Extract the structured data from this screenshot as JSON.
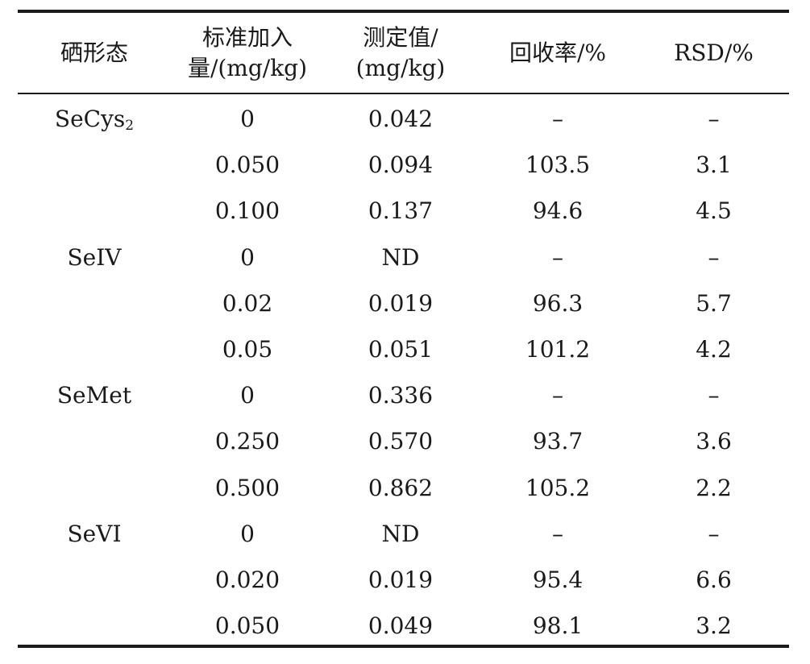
{
  "table": {
    "headers": [
      {
        "line1": "硒形态",
        "line2": ""
      },
      {
        "line1": "标准加入",
        "line2": "量/(mg/kg)"
      },
      {
        "line1": "测定值/",
        "line2": "(mg/kg)"
      },
      {
        "line1": "回收率/%",
        "line2": ""
      },
      {
        "line1": "RSD/%",
        "line2": ""
      }
    ],
    "rows": [
      {
        "species": "SeCys",
        "species_sub": "2",
        "added": "0",
        "measured": "0.042",
        "recovery": "–",
        "rsd": "–"
      },
      {
        "species": "",
        "species_sub": "",
        "added": "0.050",
        "measured": "0.094",
        "recovery": "103.5",
        "rsd": "3.1"
      },
      {
        "species": "",
        "species_sub": "",
        "added": "0.100",
        "measured": "0.137",
        "recovery": "94.6",
        "rsd": "4.5"
      },
      {
        "species": "SeIV",
        "species_sub": "",
        "added": "0",
        "measured": "ND",
        "recovery": "–",
        "rsd": "–"
      },
      {
        "species": "",
        "species_sub": "",
        "added": "0.02",
        "measured": "0.019",
        "recovery": "96.3",
        "rsd": "5.7"
      },
      {
        "species": "",
        "species_sub": "",
        "added": "0.05",
        "measured": "0.051",
        "recovery": "101.2",
        "rsd": "4.2"
      },
      {
        "species": "SeMet",
        "species_sub": "",
        "added": "0",
        "measured": "0.336",
        "recovery": "–",
        "rsd": "–"
      },
      {
        "species": "",
        "species_sub": "",
        "added": "0.250",
        "measured": "0.570",
        "recovery": "93.7",
        "rsd": "3.6"
      },
      {
        "species": "",
        "species_sub": "",
        "added": "0.500",
        "measured": "0.862",
        "recovery": "105.2",
        "rsd": "2.2"
      },
      {
        "species": "SeVI",
        "species_sub": "",
        "added": "0",
        "measured": "ND",
        "recovery": "–",
        "rsd": "–"
      },
      {
        "species": "",
        "species_sub": "",
        "added": "0.020",
        "measured": "0.019",
        "recovery": "95.4",
        "rsd": "6.6"
      },
      {
        "species": "",
        "species_sub": "",
        "added": "0.050",
        "measured": "0.049",
        "recovery": "98.1",
        "rsd": "3.2"
      }
    ]
  }
}
